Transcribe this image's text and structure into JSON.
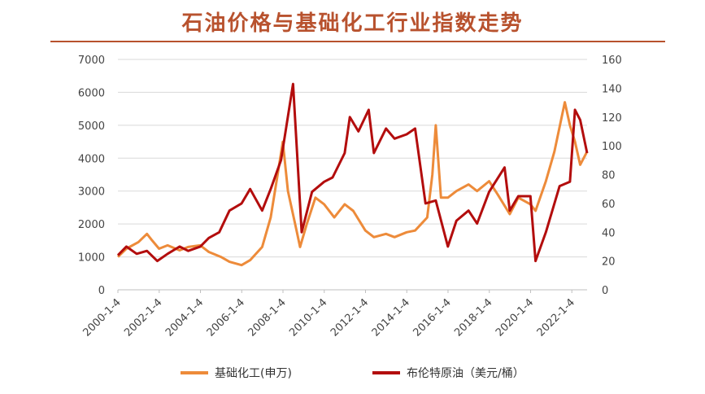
{
  "title": "石油价格与基础化工行业指数走势",
  "colors": {
    "title": "#b8522e",
    "chem": "#ed8b3a",
    "brent": "#b30d0d",
    "grid": "#d9d9d9"
  },
  "chart_data": {
    "type": "line",
    "title": "石油价格与基础化工行业指数走势",
    "xlabel": "",
    "ylabel_left": "",
    "ylabel_right": "",
    "x_range": [
      "2000-01-04",
      "2022-10-01"
    ],
    "x_tick_labels": [
      "2000-1-4",
      "2002-1-4",
      "2004-1-4",
      "2006-1-4",
      "2008-1-4",
      "2010-1-4",
      "2012-1-4",
      "2014-1-4",
      "2016-1-4",
      "2018-1-4",
      "2020-1-4",
      "2022-1-4"
    ],
    "y_left": {
      "min": 0,
      "max": 7000,
      "ticks": [
        "0",
        "1000",
        "2000",
        "3000",
        "4000",
        "5000",
        "6000",
        "7000"
      ]
    },
    "y_right": {
      "min": 0,
      "max": 160,
      "ticks": [
        "0",
        "20",
        "40",
        "60",
        "80",
        "100",
        "120",
        "140",
        "160"
      ]
    },
    "grid": true,
    "legend_position": "bottom-center",
    "series": [
      {
        "name": "基础化工(申万)",
        "axis": "left",
        "points": [
          [
            "2000-01-04",
            1000
          ],
          [
            "2000-06-01",
            1250
          ],
          [
            "2001-01-01",
            1450
          ],
          [
            "2001-06-01",
            1700
          ],
          [
            "2001-09-01",
            1500
          ],
          [
            "2002-01-01",
            1250
          ],
          [
            "2002-06-01",
            1350
          ],
          [
            "2003-01-01",
            1200
          ],
          [
            "2003-06-01",
            1300
          ],
          [
            "2004-01-01",
            1350
          ],
          [
            "2004-06-01",
            1150
          ],
          [
            "2005-01-01",
            1000
          ],
          [
            "2005-06-01",
            850
          ],
          [
            "2006-01-01",
            750
          ],
          [
            "2006-06-01",
            900
          ],
          [
            "2007-01-01",
            1300
          ],
          [
            "2007-06-01",
            2200
          ],
          [
            "2007-10-01",
            3500
          ],
          [
            "2008-01-01",
            4500
          ],
          [
            "2008-04-01",
            3000
          ],
          [
            "2008-09-01",
            1800
          ],
          [
            "2008-11-01",
            1300
          ],
          [
            "2009-03-01",
            2000
          ],
          [
            "2009-08-01",
            2800
          ],
          [
            "2010-01-01",
            2600
          ],
          [
            "2010-07-01",
            2200
          ],
          [
            "2011-01-01",
            2600
          ],
          [
            "2011-06-01",
            2400
          ],
          [
            "2012-01-01",
            1800
          ],
          [
            "2012-06-01",
            1600
          ],
          [
            "2013-01-01",
            1700
          ],
          [
            "2013-06-01",
            1600
          ],
          [
            "2014-01-01",
            1750
          ],
          [
            "2014-06-01",
            1800
          ],
          [
            "2015-01-01",
            2200
          ],
          [
            "2015-04-01",
            3500
          ],
          [
            "2015-06-01",
            5000
          ],
          [
            "2015-09-01",
            2800
          ],
          [
            "2016-01-01",
            2800
          ],
          [
            "2016-06-01",
            3000
          ],
          [
            "2017-01-01",
            3200
          ],
          [
            "2017-06-01",
            3000
          ],
          [
            "2018-01-01",
            3300
          ],
          [
            "2018-06-01",
            2900
          ],
          [
            "2019-01-01",
            2300
          ],
          [
            "2019-06-01",
            2800
          ],
          [
            "2020-01-01",
            2600
          ],
          [
            "2020-04-01",
            2400
          ],
          [
            "2020-10-01",
            3300
          ],
          [
            "2021-03-01",
            4200
          ],
          [
            "2021-09-01",
            5700
          ],
          [
            "2021-12-01",
            5000
          ],
          [
            "2022-03-01",
            4500
          ],
          [
            "2022-06-01",
            3800
          ],
          [
            "2022-10-01",
            4200
          ]
        ]
      },
      {
        "name": "布伦特原油（美元/桶）",
        "axis": "right",
        "points": [
          [
            "2000-01-04",
            24
          ],
          [
            "2000-06-01",
            30
          ],
          [
            "2000-12-01",
            25
          ],
          [
            "2001-06-01",
            27
          ],
          [
            "2001-12-01",
            20
          ],
          [
            "2002-06-01",
            25
          ],
          [
            "2003-01-01",
            30
          ],
          [
            "2003-06-01",
            27
          ],
          [
            "2004-01-01",
            30
          ],
          [
            "2004-06-01",
            36
          ],
          [
            "2004-12-01",
            40
          ],
          [
            "2005-06-01",
            55
          ],
          [
            "2006-01-01",
            60
          ],
          [
            "2006-06-01",
            70
          ],
          [
            "2007-01-01",
            55
          ],
          [
            "2007-06-01",
            70
          ],
          [
            "2007-12-01",
            90
          ],
          [
            "2008-07-01",
            143
          ],
          [
            "2008-12-01",
            40
          ],
          [
            "2009-06-01",
            68
          ],
          [
            "2010-01-01",
            75
          ],
          [
            "2010-06-01",
            78
          ],
          [
            "2011-01-01",
            95
          ],
          [
            "2011-04-01",
            120
          ],
          [
            "2011-09-01",
            110
          ],
          [
            "2012-03-01",
            125
          ],
          [
            "2012-06-01",
            95
          ],
          [
            "2013-01-01",
            112
          ],
          [
            "2013-06-01",
            105
          ],
          [
            "2014-01-01",
            108
          ],
          [
            "2014-06-01",
            112
          ],
          [
            "2014-12-01",
            60
          ],
          [
            "2015-06-01",
            62
          ],
          [
            "2016-01-01",
            30
          ],
          [
            "2016-06-01",
            48
          ],
          [
            "2017-01-01",
            55
          ],
          [
            "2017-06-01",
            46
          ],
          [
            "2018-01-01",
            68
          ],
          [
            "2018-10-01",
            85
          ],
          [
            "2019-01-01",
            55
          ],
          [
            "2019-06-01",
            65
          ],
          [
            "2020-01-01",
            65
          ],
          [
            "2020-04-01",
            20
          ],
          [
            "2020-10-01",
            40
          ],
          [
            "2021-06-01",
            72
          ],
          [
            "2021-12-01",
            75
          ],
          [
            "2022-03-01",
            125
          ],
          [
            "2022-06-01",
            118
          ],
          [
            "2022-10-01",
            95
          ]
        ]
      }
    ]
  }
}
